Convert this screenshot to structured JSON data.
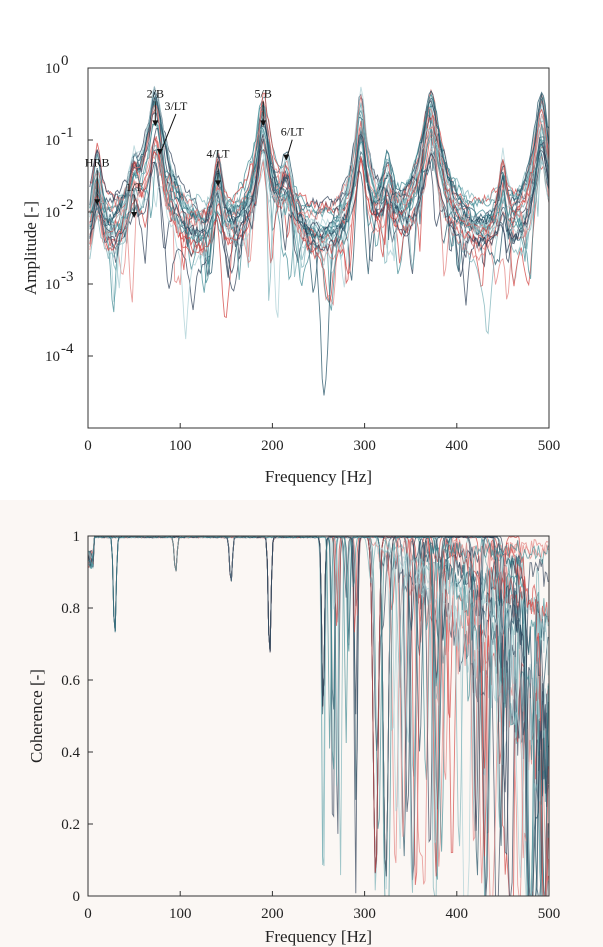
{
  "chart_data": [
    {
      "type": "line",
      "xlabel": "Frequency [Hz]",
      "ylabel": "Amplitude [-]",
      "xlim": [
        0,
        500
      ],
      "ylim": [
        1e-05,
        1
      ],
      "yscale": "log",
      "x_ticks": [
        0,
        100,
        200,
        300,
        400,
        500
      ],
      "y_ticks": [
        {
          "value": 0.0001,
          "base": "10",
          "exp": "-4"
        },
        {
          "value": 0.001,
          "base": "10",
          "exp": "-3"
        },
        {
          "value": 0.01,
          "base": "10",
          "exp": "-2"
        },
        {
          "value": 0.1,
          "base": "10",
          "exp": "-1"
        },
        {
          "value": 1,
          "base": "10",
          "exp": "0"
        }
      ],
      "grid": false,
      "annotations": [
        {
          "label": "HRB",
          "x": 10,
          "y": 0.012
        },
        {
          "label": "1/T",
          "x": 50,
          "y": 0.008
        },
        {
          "label": "2/B",
          "x": 73,
          "y": 0.15
        },
        {
          "label": "3/LT",
          "x": 78,
          "y": 0.06
        },
        {
          "label": "4/LT",
          "x": 141,
          "y": 0.022
        },
        {
          "label": "5/B",
          "x": 190,
          "y": 0.15
        },
        {
          "label": "6/LT",
          "x": 215,
          "y": 0.05
        }
      ],
      "series_palette": [
        "#2e3f57",
        "#3f8a93",
        "#d2413f",
        "#79b0b7",
        "#e27f7c",
        "#1f4f63",
        "#a9cfd4"
      ],
      "series_count": 30,
      "peaks_hz": [
        10,
        50,
        73,
        141,
        190,
        215,
        296,
        325,
        372,
        450,
        492
      ],
      "series_note": "frequency response functions, approx. 30 curves"
    },
    {
      "type": "line",
      "xlabel": "Frequency [Hz]",
      "ylabel": "Coherence [-]",
      "xlim": [
        0,
        500
      ],
      "ylim": [
        0,
        1
      ],
      "x_ticks": [
        0,
        100,
        200,
        300,
        400,
        500
      ],
      "y_ticks": [
        0,
        0.2,
        0.4,
        0.6,
        0.8,
        1
      ],
      "y_tick_labels": [
        "0",
        "0.2",
        "0.4",
        "0.6",
        "0.8",
        "1"
      ],
      "grid": false,
      "series_palette": [
        "#2e3f57",
        "#3f8a93",
        "#d2413f",
        "#79b0b7",
        "#e27f7c",
        "#1f4f63",
        "#a9cfd4"
      ],
      "series_count": 30,
      "dips": [
        {
          "x": 29,
          "y": 0.72
        },
        {
          "x": 95,
          "y": 0.9
        },
        {
          "x": 155,
          "y": 0.87
        },
        {
          "x": 197,
          "y": 0.66
        },
        {
          "x": 255,
          "y": 0.5
        },
        {
          "x": 312,
          "y": 0.05
        },
        {
          "x": 323,
          "y": 0.04
        },
        {
          "x": 378,
          "y": 0.6
        },
        {
          "x": 480,
          "y": 0.0
        },
        {
          "x": 495,
          "y": 0.02
        }
      ]
    }
  ]
}
